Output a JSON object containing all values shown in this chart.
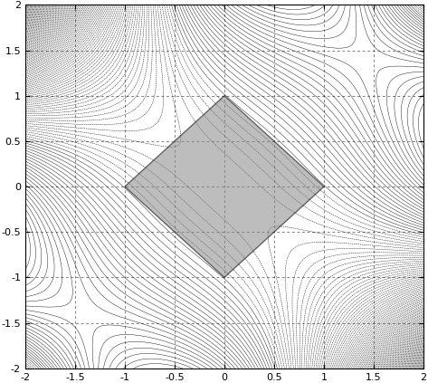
{
  "xlim": [
    -2,
    2
  ],
  "ylim": [
    -2,
    2
  ],
  "xticks": [
    -2,
    -1.5,
    -1,
    -0.5,
    0,
    0.5,
    1,
    1.5,
    2
  ],
  "yticks": [
    -2,
    -1.5,
    -1,
    -0.5,
    0,
    0.5,
    1,
    1.5,
    2
  ],
  "xtick_labels": [
    "-2",
    "-1.5",
    "-1",
    "-0.5",
    "0",
    "0.5",
    "1",
    "1.5",
    "2"
  ],
  "ytick_labels": [
    "-2",
    "-1.5",
    "-1",
    "-0.5",
    "0",
    "0.5",
    "1",
    "1.5",
    "2"
  ],
  "contour_levels": 120,
  "contour_color": "black",
  "contour_linewidth": 0.3,
  "feasible_color": "#888888",
  "feasible_alpha": 0.55,
  "feasible_vertices": [
    [
      -1,
      0
    ],
    [
      0,
      1
    ],
    [
      1,
      0
    ],
    [
      0,
      -1
    ]
  ],
  "background_color": "#ffffff",
  "figsize": [
    4.73,
    4.23
  ],
  "dpi": 100
}
